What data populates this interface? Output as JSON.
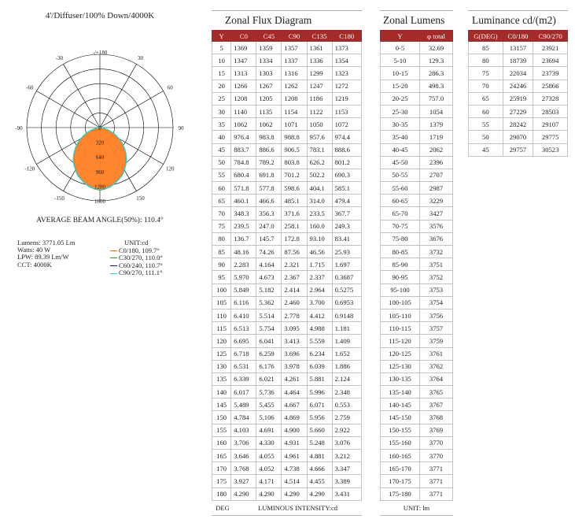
{
  "left": {
    "title": "4'/Diffuser/100% Down/4000K",
    "beam_angle": "AVERAGE BEAM ANGLE(50%): 110.4°",
    "specs": [
      "Lumens: 3771.05 Lm",
      "Watts: 40 W",
      "LPW: 89.39 Lm/W",
      "CCT: 4000K"
    ],
    "unit": "UNIT:cd",
    "legend": [
      {
        "label": "C0/180, 109.7°",
        "color": "#ff6a00"
      },
      {
        "label": "C30/270, 110.0°",
        "color": "#22aa22"
      },
      {
        "label": "C60/240, 110.7°",
        "color": "#1a1a66"
      },
      {
        "label": "C90/270, 111.1°",
        "color": "#30d0d0"
      }
    ]
  },
  "chart_data": {
    "type": "polar",
    "angle_labels": [
      "-/+180",
      "150",
      "120",
      "90",
      "60",
      "30",
      "0",
      "-30",
      "-60",
      "-90",
      "-120",
      "-150"
    ],
    "radial_labels": [
      "0",
      "320",
      "640",
      "960",
      "1280",
      "1600"
    ],
    "r_max": 1600,
    "angles": [
      0,
      5,
      10,
      15,
      20,
      25,
      30,
      35,
      40,
      45,
      50,
      55,
      60,
      65,
      70,
      75,
      80,
      85,
      90
    ],
    "series": [
      {
        "name": "C0/180, 109.7°",
        "color": "#ff6a00",
        "values": [
          1369,
          1347,
          1313,
          1266,
          1208,
          1140,
          1062,
          976.4,
          883.7,
          784.8,
          680.4,
          571.8,
          460.1,
          348.3,
          239.5,
          136.7,
          48.16,
          2.283,
          5.97
        ]
      },
      {
        "name": "C90/270, 111.1°",
        "color": "#30d0d0",
        "values": [
          1357,
          1337,
          1316,
          1262,
          1205,
          1154,
          1071,
          988.8,
          906.5,
          803.8,
          701.2,
          598.6,
          485.1,
          371.6,
          258.1,
          172.8,
          87.56,
          2.321,
          2.367
        ]
      }
    ]
  },
  "flux": {
    "title": "Zonal Flux Diagram",
    "headers": [
      "Y",
      "C0",
      "C45",
      "C90",
      "C135",
      "C180"
    ],
    "rows": [
      [
        "5",
        "1369",
        "1359",
        "1357",
        "1361",
        "1373"
      ],
      [
        "10",
        "1347",
        "1334",
        "1337",
        "1336",
        "1354"
      ],
      [
        "15",
        "1313",
        "1303",
        "1316",
        "1299",
        "1323"
      ],
      [
        "20",
        "1266",
        "1267",
        "1262",
        "1247",
        "1272"
      ],
      [
        "25",
        "1208",
        "1205",
        "1208",
        "1186",
        "1219"
      ],
      [
        "30",
        "1140",
        "1135",
        "1154",
        "1122",
        "1153"
      ],
      [
        "35",
        "1062",
        "1062",
        "1071",
        "1050",
        "1072"
      ],
      [
        "40",
        "976.4",
        "983.8",
        "988.8",
        "957.6",
        "974.4"
      ],
      [
        "45",
        "883.7",
        "886.6",
        "906.5",
        "783.1",
        "888.6"
      ],
      [
        "50",
        "784.8",
        "789.2",
        "803.8",
        "626.2",
        "801.2"
      ],
      [
        "55",
        "680.4",
        "691.8",
        "701.2",
        "502.2",
        "690.3"
      ],
      [
        "60",
        "571.8",
        "577.8",
        "598.6",
        "404.1",
        "585.1"
      ],
      [
        "65",
        "460.1",
        "466.6",
        "485.1",
        "314.0",
        "479.4"
      ],
      [
        "70",
        "348.3",
        "356.3",
        "371.6",
        "233.5",
        "367.7"
      ],
      [
        "75",
        "239.5",
        "247.0",
        "258.1",
        "160.0",
        "249.3"
      ],
      [
        "80",
        "136.7",
        "145.7",
        "172.8",
        "93.10",
        "83.41"
      ],
      [
        "85",
        "48.16",
        "74.26",
        "87.56",
        "46.56",
        "25.93"
      ],
      [
        "90",
        "2.283",
        "4.164",
        "2.321",
        "1.715",
        "1.697"
      ],
      [
        "95",
        "5.970",
        "4.673",
        "2.367",
        "2.337",
        "0.3687"
      ],
      [
        "100",
        "5.849",
        "5.182",
        "2.414",
        "2.964",
        "0.5275"
      ],
      [
        "105",
        "6.116",
        "5.362",
        "2.460",
        "3.700",
        "0.6953"
      ],
      [
        "110",
        "6.410",
        "5.514",
        "2.778",
        "4.412",
        "0.9148"
      ],
      [
        "115",
        "6.513",
        "5.754",
        "3.095",
        "4.988",
        "1.181"
      ],
      [
        "120",
        "6.695",
        "6.041",
        "3.413",
        "5.559",
        "1.409"
      ],
      [
        "125",
        "6.718",
        "6.259",
        "3.696",
        "6.234",
        "1.652"
      ],
      [
        "130",
        "6.531",
        "6.176",
        "3.978",
        "6.039",
        "1.886"
      ],
      [
        "135",
        "6.339",
        "6.021",
        "4.261",
        "5.881",
        "2.124"
      ],
      [
        "140",
        "6.017",
        "5.736",
        "4.464",
        "5.996",
        "2.348"
      ],
      [
        "145",
        "5.489",
        "5.455",
        "4.667",
        "6.071",
        "0.553"
      ],
      [
        "150",
        "4.784",
        "5.106",
        "4.869",
        "5.956",
        "2.759"
      ],
      [
        "155",
        "4.103",
        "4.691",
        "4.900",
        "5.660",
        "2.922"
      ],
      [
        "160",
        "3.706",
        "4.330",
        "4.931",
        "5.248",
        "3.076"
      ],
      [
        "165",
        "3.646",
        "4.055",
        "4.961",
        "4.881",
        "3.212"
      ],
      [
        "170",
        "3.768",
        "4.052",
        "4.738",
        "4.666",
        "3.347"
      ],
      [
        "175",
        "3.927",
        "4.171",
        "4.514",
        "4.455",
        "3.389"
      ],
      [
        "180",
        "4.290",
        "4.290",
        "4.290",
        "4.290",
        "3.431"
      ]
    ],
    "footer_left": "DEG",
    "footer_right": "LUMINOUS INTENSITY:cd"
  },
  "lumens": {
    "title": "Zonal Lumens",
    "headers": [
      "Y",
      "φ total"
    ],
    "rows": [
      [
        "0-5",
        "32.69"
      ],
      [
        "5-10",
        "129.3"
      ],
      [
        "10-15",
        "286.3"
      ],
      [
        "15-20",
        "498.3"
      ],
      [
        "20-25",
        "757.0"
      ],
      [
        "25-30",
        "1054"
      ],
      [
        "30-35",
        "1379"
      ],
      [
        "35-40",
        "1719"
      ],
      [
        "40-45",
        "2062"
      ],
      [
        "45-50",
        "2396"
      ],
      [
        "50-55",
        "2707"
      ],
      [
        "55-60",
        "2987"
      ],
      [
        "60-65",
        "3229"
      ],
      [
        "65-70",
        "3427"
      ],
      [
        "70-75",
        "3576"
      ],
      [
        "75-80",
        "3676"
      ],
      [
        "80-85",
        "3732"
      ],
      [
        "85-90",
        "3751"
      ],
      [
        "90-95",
        "3752"
      ],
      [
        "95-100",
        "3753"
      ],
      [
        "100-105",
        "3754"
      ],
      [
        "105-110",
        "3756"
      ],
      [
        "110-115",
        "3757"
      ],
      [
        "115-120",
        "3759"
      ],
      [
        "120-125",
        "3761"
      ],
      [
        "125-130",
        "3762"
      ],
      [
        "130-135",
        "3764"
      ],
      [
        "135-140",
        "3765"
      ],
      [
        "140-145",
        "3767"
      ],
      [
        "145-150",
        "3768"
      ],
      [
        "150-155",
        "3769"
      ],
      [
        "155-160",
        "3770"
      ],
      [
        "160-165",
        "3770"
      ],
      [
        "165-170",
        "3771"
      ],
      [
        "170-175",
        "3771"
      ],
      [
        "175-180",
        "3771"
      ]
    ],
    "footer": "UNIT: lm"
  },
  "luminance": {
    "title": "Luminance cd/(m2)",
    "headers": [
      "G(DEG)",
      "C0/180",
      "C90/270"
    ],
    "rows": [
      [
        "85",
        "13157",
        "23921"
      ],
      [
        "80",
        "18739",
        "23694"
      ],
      [
        "75",
        "22034",
        "23739"
      ],
      [
        "70",
        "24246",
        "25866"
      ],
      [
        "65",
        "25919",
        "27328"
      ],
      [
        "60",
        "27229",
        "28503"
      ],
      [
        "55",
        "28242",
        "29107"
      ],
      [
        "50",
        "29070",
        "29775"
      ],
      [
        "45",
        "29757",
        "30523"
      ]
    ]
  }
}
